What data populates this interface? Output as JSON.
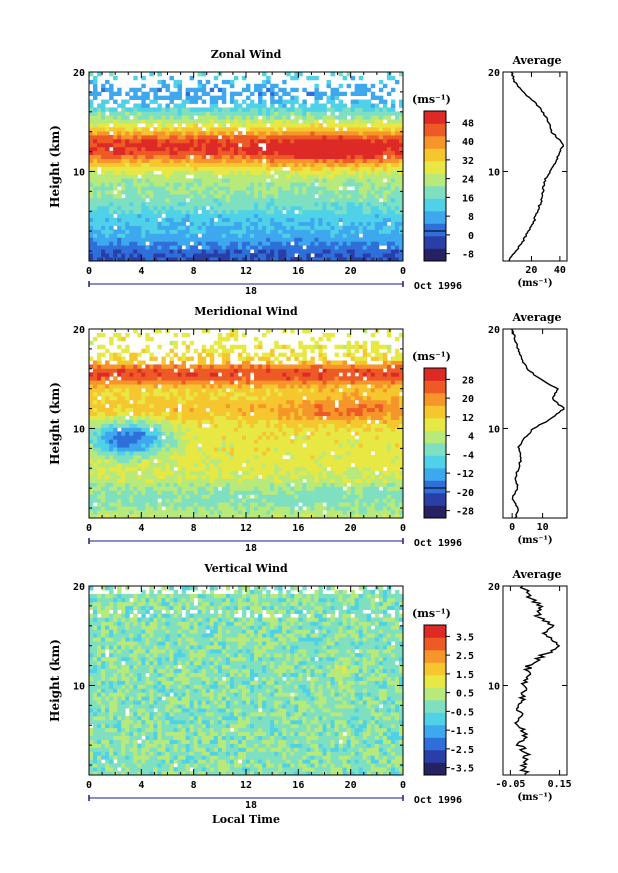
{
  "figure": {
    "xlabel": "Local Time",
    "date_label": "Oct 1996",
    "day_label": "18",
    "unit_label": "(ms⁻¹)",
    "average_title": "Average",
    "ylabel": "Height (km)"
  },
  "chart_data": [
    {
      "type": "heatmap",
      "title": "Zonal Wind",
      "xlabel": "Local Time",
      "ylabel": "Height (km)",
      "x_ticks": [
        "0",
        "4",
        "8",
        "12",
        "16",
        "20",
        "0"
      ],
      "y_ticks": [
        "10",
        "20"
      ],
      "xlim": [
        0,
        24
      ],
      "ylim": [
        1,
        20
      ],
      "colorbar": {
        "label": "(ms⁻¹)",
        "ticks": [
          "48",
          "40",
          "32",
          "24",
          "16",
          "8",
          "0",
          "-8"
        ],
        "range": [
          -12,
          52
        ]
      },
      "average_profile": {
        "title": "Average",
        "x_ticks": [
          "20",
          "40"
        ],
        "xlim": [
          0,
          45
        ],
        "height_km": [
          1,
          2,
          3,
          4,
          5,
          6,
          7,
          8,
          9,
          10,
          11,
          12,
          12.5,
          13,
          14,
          15,
          16,
          17,
          18,
          19,
          20
        ],
        "value": [
          4,
          9,
          14,
          18,
          22,
          24,
          27,
          28,
          29,
          33,
          37,
          40,
          42,
          41,
          34,
          32,
          28,
          22,
          14,
          8,
          6
        ]
      }
    },
    {
      "type": "heatmap",
      "title": "Meridional Wind",
      "xlabel": "Local Time",
      "ylabel": "Height (km)",
      "x_ticks": [
        "0",
        "4",
        "8",
        "12",
        "16",
        "20",
        "0"
      ],
      "y_ticks": [
        "10",
        "20"
      ],
      "xlim": [
        0,
        24
      ],
      "ylim": [
        1,
        20
      ],
      "colorbar": {
        "label": "(ms⁻¹)",
        "ticks": [
          "28",
          "20",
          "12",
          "4",
          "-4",
          "-12",
          "-20",
          "-28"
        ],
        "range": [
          -32,
          32
        ]
      },
      "average_profile": {
        "title": "Average",
        "x_ticks": [
          "0",
          "10"
        ],
        "xlim": [
          -3,
          18
        ],
        "height_km": [
          1,
          2,
          3,
          4,
          5,
          6,
          7,
          8,
          9,
          10,
          11,
          12,
          13,
          14,
          15,
          16,
          17,
          18,
          19,
          20
        ],
        "value": [
          1,
          2,
          0,
          2,
          1,
          2,
          3,
          2,
          4,
          7,
          13,
          17,
          13,
          15,
          9,
          5,
          3,
          2,
          1,
          0
        ]
      }
    },
    {
      "type": "heatmap",
      "title": "Vertical Wind",
      "xlabel": "Local Time",
      "ylabel": "Height (km)",
      "x_ticks": [
        "0",
        "4",
        "8",
        "12",
        "16",
        "20",
        "0"
      ],
      "y_ticks": [
        "10",
        "20"
      ],
      "xlim": [
        0,
        24
      ],
      "ylim": [
        1,
        20
      ],
      "colorbar": {
        "label": "(ms⁻¹)",
        "ticks": [
          "3.5",
          "2.5",
          "1.5",
          "0.5",
          "-0.5",
          "-1.5",
          "-2.5",
          "-3.5"
        ],
        "range": [
          -4,
          4
        ]
      },
      "average_profile": {
        "title": "Average",
        "x_ticks": [
          "-0.05",
          "0.15"
        ],
        "xlim": [
          -0.08,
          0.18
        ],
        "height_km": [
          1,
          2,
          3,
          4,
          5,
          6,
          7,
          8,
          9,
          10,
          11,
          12,
          13,
          14,
          15,
          16,
          17,
          18,
          19,
          20
        ],
        "value": [
          0.01,
          0.0,
          0.02,
          -0.01,
          0.01,
          -0.02,
          0.0,
          -0.03,
          0.01,
          0.0,
          0.03,
          0.02,
          0.08,
          0.15,
          0.09,
          0.12,
          0.06,
          0.08,
          0.02,
          0.0
        ]
      }
    }
  ],
  "colormap": [
    "#262262",
    "#2a3ea8",
    "#2f6fd9",
    "#3ea8ee",
    "#4fd1e8",
    "#7ee0c0",
    "#b7ea7a",
    "#e8e845",
    "#f6c62f",
    "#f5952a",
    "#ee5a26",
    "#dd2a26"
  ]
}
